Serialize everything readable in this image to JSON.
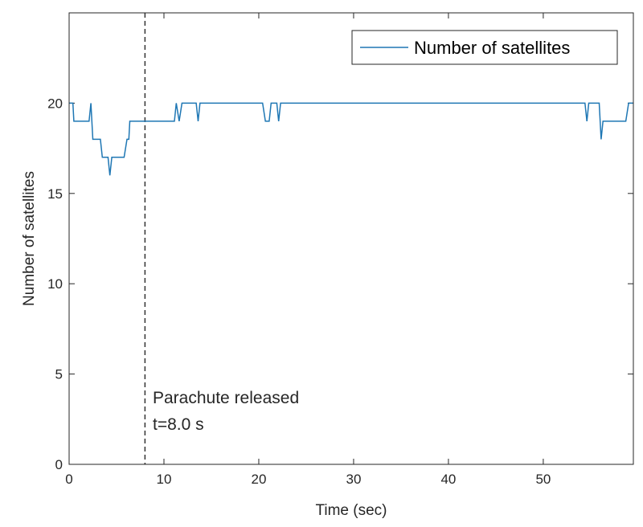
{
  "chart_data": {
    "type": "line",
    "title": "",
    "xlabel": "Time (sec)",
    "ylabel": "Number of satellites",
    "xlim": [
      0,
      59.5
    ],
    "ylim": [
      0,
      25
    ],
    "xticks": [
      0,
      10,
      20,
      30,
      40,
      50
    ],
    "yticks": [
      0,
      5,
      10,
      15,
      20
    ],
    "grid": false,
    "legend_position": "top-right",
    "colors": {
      "series": "#1f77b4",
      "axis": "#262626",
      "marker_line": "#333333"
    },
    "series": [
      {
        "name": "Number of satellites",
        "x": [
          0,
          0.4,
          0.5,
          2.1,
          2.3,
          2.5,
          2.7,
          3.3,
          3.5,
          3.9,
          4.1,
          4.3,
          4.5,
          4.7,
          5.8,
          6.1,
          6.3,
          6.4,
          7.8,
          11.1,
          11.3,
          11.6,
          11.9,
          12.1,
          13.4,
          13.6,
          13.8,
          20.4,
          20.7,
          21.1,
          21.3,
          21.9,
          22.1,
          22.3,
          54.4,
          54.6,
          54.8,
          55.9,
          56.1,
          56.3,
          58.7,
          59.0,
          59.5
        ],
        "y": [
          20,
          20,
          19,
          19,
          20,
          18,
          18,
          18,
          17,
          17,
          17,
          16,
          17,
          17,
          17,
          18,
          18,
          19,
          19,
          19,
          20,
          19,
          20,
          20,
          20,
          19,
          20,
          20,
          19,
          19,
          20,
          20,
          19,
          20,
          20,
          19,
          20,
          20,
          18,
          19,
          19,
          20,
          20
        ]
      }
    ],
    "vertical_marker": {
      "x": 8.0,
      "style": "dashed"
    },
    "annotations": [
      "Parachute released",
      "t=8.0 s"
    ]
  }
}
